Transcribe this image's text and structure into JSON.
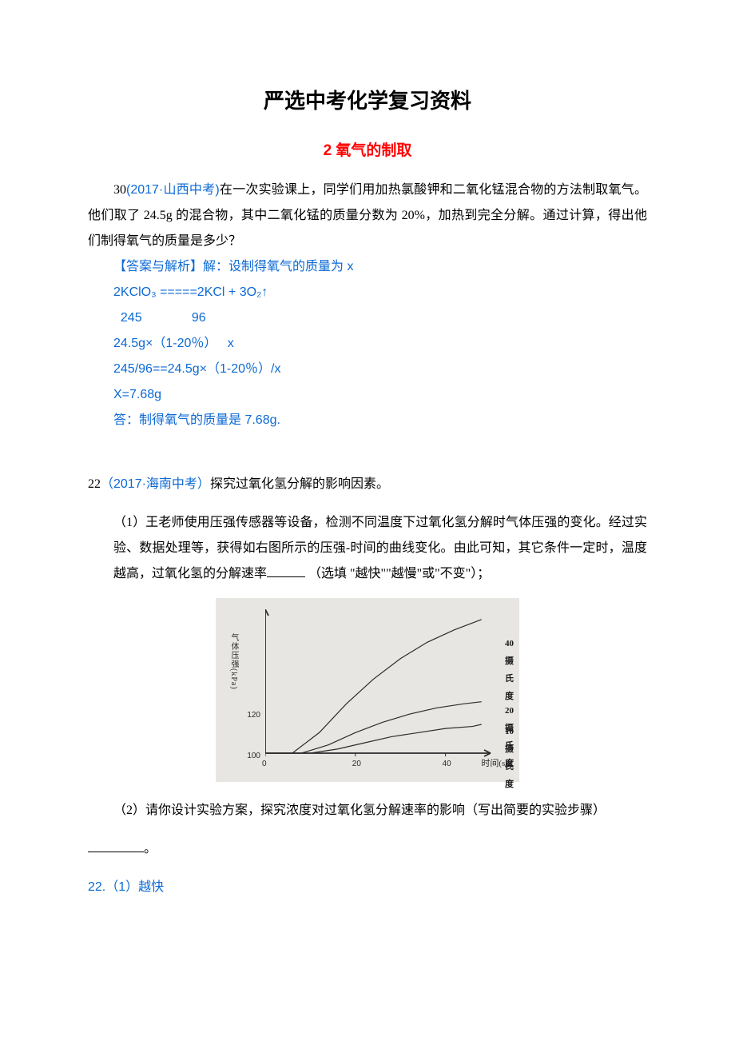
{
  "colors": {
    "text": "#000000",
    "accent_red": "#ff0000",
    "accent_blue": "#0c69d4",
    "chart_bg": "#e8e6e3",
    "chart_line": "#2b2b2b"
  },
  "title_main": "严选中考化学复习资料",
  "title_sub": "2 氧气的制取",
  "q30": {
    "prefix": "30",
    "source": "(2017·山西中考)",
    "body": "在一次实验课上，同学们用加热氯酸钾和二氧化锰混合物的方法制取氧气。他们取了 24.5g 的混合物，其中二氧化锰的质量分数为 20%，加热到完全分解。通过计算，得出他们制得氧气的质量是多少？",
    "ans_label": "【答案与解析】",
    "ans_l1": "解：设制得氧气的质量为 x",
    "ans_eq": "2KClO₃ =====2KCl + 3O₂↑",
    "ans_mass_row": "  245              96",
    "ans_sub_row": "24.5g×（1-20％）   x",
    "ans_ratio": "245/96==24.5g×（1-20％）/x",
    "ans_x": "X=7.68g",
    "ans_final": "答：制得氧气的质量是 7.68g."
  },
  "q22": {
    "prefix": "22",
    "source": "（2017·海南中考）",
    "stem": "探究过氧化氢分解的影响因素。",
    "part1_pre": "（1）王老师使用压强传感器等设备，检测不同温度下过氧化氢分解时气体压强的变化。经过实验、数据处理等，获得如右图所示的压强-时间的曲线变化。由此可知，其它条件一定时，温度越高，过氧化氢的分解速率",
    "part1_post": "（选填 \"越快\"\"越慢\"或\"不变\"）；",
    "part2": "（2）请你设计实验方案，探究浓度对过氧化氢分解速率的影响（写出简要的实验步骤）",
    "part2_suffix": "。",
    "answer": "22.（1）越快"
  },
  "chart": {
    "type": "line",
    "background_color": "#e8e6e3",
    "axis_color": "#2b2b2b",
    "line_color": "#2b2b2b",
    "line_width": 1.2,
    "xlabel": "时间(s)",
    "ylabel": "气体压强(kPa)",
    "xlim": [
      0,
      50
    ],
    "ylim": [
      100,
      170
    ],
    "xticks": [
      0,
      20,
      40
    ],
    "yticks": [
      100,
      120
    ],
    "series": [
      {
        "name": "40摄氏度",
        "label_pos": {
          "x": 300,
          "y": 32
        },
        "points": [
          [
            0,
            100
          ],
          [
            6,
            100
          ],
          [
            12,
            110
          ],
          [
            18,
            124
          ],
          [
            24,
            136
          ],
          [
            30,
            146
          ],
          [
            36,
            154
          ],
          [
            42,
            160
          ],
          [
            48,
            165
          ]
        ]
      },
      {
        "name": "20摄氏度",
        "label_pos": {
          "x": 300,
          "y": 116
        },
        "points": [
          [
            0,
            100
          ],
          [
            8,
            100
          ],
          [
            14,
            104
          ],
          [
            20,
            110
          ],
          [
            26,
            115
          ],
          [
            32,
            119
          ],
          [
            38,
            122
          ],
          [
            44,
            124
          ],
          [
            48,
            125
          ]
        ]
      },
      {
        "name": "10摄氏度",
        "label_pos": {
          "x": 300,
          "y": 142
        },
        "points": [
          [
            0,
            100
          ],
          [
            10,
            100
          ],
          [
            16,
            102
          ],
          [
            22,
            105
          ],
          [
            28,
            108
          ],
          [
            34,
            110
          ],
          [
            40,
            112
          ],
          [
            46,
            113
          ],
          [
            48,
            114
          ]
        ]
      }
    ]
  }
}
